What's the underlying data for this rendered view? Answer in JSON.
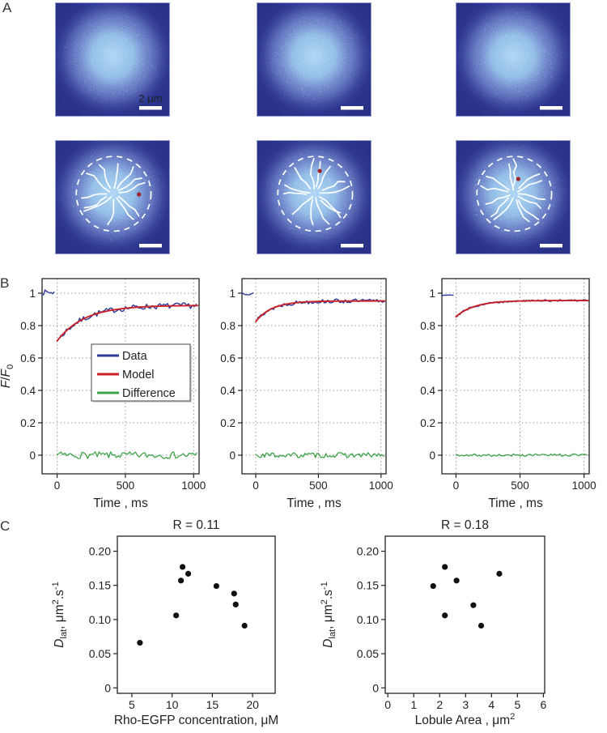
{
  "panels": {
    "a": "A",
    "b": "B",
    "c": "C"
  },
  "colors": {
    "data_line": "#2b3b96",
    "model_line": "#cb2027",
    "difference_line": "#3fa34a",
    "axis": "#222222",
    "grid": "#999999",
    "marker": "#111111"
  },
  "panel_a": {
    "scalebar_label": "2 μm",
    "colors": {
      "background": "#2a3288",
      "glow_center": "#9bcdf1",
      "glow_mid": "#4d68bd",
      "annotation": "#ffffff",
      "red_dot": "#9e2428"
    },
    "images": [
      {
        "name": "droplet-1",
        "row": 0,
        "col": 0,
        "annotated": false,
        "show_scalebar_label": true,
        "seed": 3
      },
      {
        "name": "droplet-2",
        "row": 0,
        "col": 1,
        "annotated": false,
        "seed": 11
      },
      {
        "name": "droplet-3",
        "row": 0,
        "col": 2,
        "annotated": false,
        "seed": 17
      },
      {
        "name": "droplet-1-segmented",
        "row": 1,
        "col": 0,
        "annotated": true,
        "lobule_count": 12,
        "red_dot": [
          0.73,
          0.475
        ],
        "seed": 23
      },
      {
        "name": "droplet-2-segmented",
        "row": 1,
        "col": 1,
        "annotated": true,
        "lobule_count": 13,
        "red_dot": [
          0.55,
          0.27
        ],
        "seed": 31
      },
      {
        "name": "droplet-3-segmented",
        "row": 1,
        "col": 2,
        "annotated": true,
        "lobule_count": 13,
        "red_dot": [
          0.545,
          0.34
        ],
        "seed": 41
      }
    ]
  },
  "chart_data": [
    {
      "id": "frap1",
      "type": "line",
      "panel": "B",
      "xlabel": "Time , ms",
      "ylabel_parts": [
        {
          "t": "F",
          "style": "italic"
        },
        {
          "t": "/"
        },
        {
          "t": "F",
          "style": "italic"
        },
        {
          "t": "0",
          "pos": "sub"
        }
      ],
      "xlim": [
        -110,
        1040
      ],
      "ylim": [
        -0.115,
        1.09
      ],
      "xticks": [
        0,
        500,
        1000
      ],
      "xtick_labels": [
        "0",
        "500",
        "1000"
      ],
      "yticks": [
        0,
        0.2,
        0.4,
        0.6,
        0.8,
        1
      ],
      "ytick_labels": [
        "0",
        "0.2",
        "0.4",
        "0.6",
        "0.8",
        "1"
      ],
      "grid": true,
      "seed": 7,
      "legend": {
        "labels": [
          "Data",
          "Model",
          "Difference"
        ]
      },
      "series": [
        {
          "name": "Data",
          "color": "#2b3b96",
          "width": 1.4,
          "segments": [
            {
              "kind": "noisy",
              "t0": -110,
              "t1": -18,
              "level": 1.005,
              "noise": 0.016,
              "step": 11
            },
            {
              "kind": "noisy_recovery",
              "t0": 25,
              "t1": 1030,
              "f0": 0.705,
              "plateau": 0.925,
              "tau": 200,
              "noise": 0.018,
              "step": 14
            }
          ]
        },
        {
          "name": "Model",
          "color": "#cb2027",
          "width": 1.9,
          "segments": [
            {
              "kind": "recovery",
              "t0": 0,
              "t1": 1030,
              "f0": 0.705,
              "plateau": 0.925,
              "tau": 200,
              "step": 10
            }
          ]
        },
        {
          "name": "Difference",
          "color": "#3fa34a",
          "width": 1.3,
          "segments": [
            {
              "kind": "noisy",
              "t0": 0,
              "t1": 1030,
              "level": 0,
              "noise": 0.021,
              "step": 14
            }
          ]
        }
      ]
    },
    {
      "id": "frap2",
      "type": "line",
      "panel": "B",
      "xlabel": "Time , ms",
      "xlim": [
        -110,
        1040
      ],
      "ylim": [
        -0.115,
        1.09
      ],
      "xticks": [
        0,
        500,
        1000
      ],
      "xtick_labels": [
        "0",
        "500",
        "1000"
      ],
      "yticks": [
        0,
        0.2,
        0.4,
        0.6,
        0.8,
        1
      ],
      "ytick_labels": [
        "0",
        "0.2",
        "0.4",
        "0.6",
        "0.8",
        "1"
      ],
      "grid": true,
      "seed": 13,
      "series": [
        {
          "name": "Data",
          "color": "#2b3b96",
          "width": 1.4,
          "segments": [
            {
              "kind": "noisy",
              "t0": -110,
              "t1": -15,
              "level": 1.0,
              "noise": 0.01,
              "step": 11
            },
            {
              "kind": "noisy_recovery",
              "t0": 15,
              "t1": 1030,
              "f0": 0.825,
              "plateau": 0.952,
              "tau": 130,
              "noise": 0.013,
              "step": 14
            }
          ]
        },
        {
          "name": "Model",
          "color": "#cb2027",
          "width": 1.9,
          "segments": [
            {
              "kind": "recovery",
              "t0": 0,
              "t1": 1030,
              "f0": 0.825,
              "plateau": 0.952,
              "tau": 130,
              "step": 10
            }
          ]
        },
        {
          "name": "Difference",
          "color": "#3fa34a",
          "width": 1.3,
          "segments": [
            {
              "kind": "noisy",
              "t0": 0,
              "t1": 1030,
              "level": 0,
              "noise": 0.016,
              "step": 14
            }
          ]
        }
      ]
    },
    {
      "id": "frap3",
      "type": "line",
      "panel": "B",
      "xlabel": "Time , ms",
      "xlim": [
        -110,
        1040
      ],
      "ylim": [
        -0.115,
        1.09
      ],
      "xticks": [
        0,
        500,
        1000
      ],
      "xtick_labels": [
        "0",
        "500",
        "1000"
      ],
      "yticks": [
        0,
        0.2,
        0.4,
        0.6,
        0.8,
        1
      ],
      "ytick_labels": [
        "0",
        "0.2",
        "0.4",
        "0.6",
        "0.8",
        "1"
      ],
      "grid": true,
      "seed": 29,
      "series": [
        {
          "name": "Data",
          "color": "#2b3b96",
          "width": 1.4,
          "segments": [
            {
              "kind": "noisy",
              "t0": -110,
              "t1": -15,
              "level": 0.99,
              "noise": 0.005,
              "step": 11
            },
            {
              "kind": "noisy_recovery",
              "t0": 10,
              "t1": 1030,
              "f0": 0.855,
              "plateau": 0.955,
              "tau": 145,
              "noise": 0.006,
              "step": 10
            }
          ]
        },
        {
          "name": "Model",
          "color": "#cb2027",
          "width": 1.9,
          "segments": [
            {
              "kind": "recovery",
              "t0": 0,
              "t1": 1030,
              "f0": 0.855,
              "plateau": 0.955,
              "tau": 145,
              "step": 10
            }
          ]
        },
        {
          "name": "Difference",
          "color": "#3fa34a",
          "width": 1.3,
          "segments": [
            {
              "kind": "noisy",
              "t0": 0,
              "t1": 1030,
              "level": 0,
              "noise": 0.008,
              "step": 14
            }
          ]
        }
      ]
    },
    {
      "id": "scatter1",
      "type": "scatter",
      "panel": "C",
      "title": "R = 0.11",
      "xlabel_parts": [
        {
          "t": "Rho-EGFP concentration, μM"
        }
      ],
      "ylabel_parts": [
        {
          "t": "D",
          "style": "italic"
        },
        {
          "t": "lat",
          "pos": "sub"
        },
        {
          "t": ", μm"
        },
        {
          "t": "2",
          "pos": "sup"
        },
        {
          "t": ".s"
        },
        {
          "t": "-1",
          "pos": "sup"
        }
      ],
      "xlim": [
        3.2,
        22.8
      ],
      "ylim": [
        -0.008,
        0.222
      ],
      "xticks": [
        5,
        10,
        15,
        20
      ],
      "xtick_labels": [
        "5",
        "10",
        "15",
        "20"
      ],
      "yticks": [
        0,
        0.05,
        0.1,
        0.15,
        0.2
      ],
      "ytick_labels": [
        "0",
        "0.05",
        "0.10",
        "0.15",
        "0.20"
      ],
      "marker_radius": 3.6,
      "marker_color": "#111111",
      "points": [
        [
          6.0,
          0.066
        ],
        [
          10.5,
          0.106
        ],
        [
          11.1,
          0.157
        ],
        [
          11.3,
          0.177
        ],
        [
          12.0,
          0.167
        ],
        [
          15.5,
          0.149
        ],
        [
          17.7,
          0.138
        ],
        [
          17.9,
          0.122
        ],
        [
          19.0,
          0.091
        ]
      ]
    },
    {
      "id": "scatter2",
      "type": "scatter",
      "panel": "C",
      "title": "R = 0.18",
      "xlabel_parts": [
        {
          "t": "Lobule Area , μm"
        },
        {
          "t": "2",
          "pos": "sup"
        }
      ],
      "ylabel_parts": [
        {
          "t": "D",
          "style": "italic"
        },
        {
          "t": "lat",
          "pos": "sub"
        },
        {
          "t": ", μm"
        },
        {
          "t": "2",
          "pos": "sup"
        },
        {
          "t": ".s"
        },
        {
          "t": "-1",
          "pos": "sup"
        }
      ],
      "xlim": [
        -0.1,
        6.05
      ],
      "ylim": [
        -0.008,
        0.222
      ],
      "xticks": [
        0,
        1,
        2,
        3,
        4,
        5,
        6
      ],
      "xtick_labels": [
        "0",
        "1",
        "2",
        "3",
        "4",
        "5",
        "6"
      ],
      "yticks": [
        0,
        0.05,
        0.1,
        0.15,
        0.2
      ],
      "ytick_labels": [
        "0",
        "0.05",
        "0.10",
        "0.15",
        "0.20"
      ],
      "marker_radius": 3.6,
      "marker_color": "#111111",
      "points": [
        [
          1.75,
          0.149
        ],
        [
          2.2,
          0.177
        ],
        [
          2.2,
          0.106
        ],
        [
          2.65,
          0.157
        ],
        [
          3.3,
          0.121
        ],
        [
          3.6,
          0.091
        ],
        [
          4.3,
          0.167
        ]
      ]
    }
  ]
}
